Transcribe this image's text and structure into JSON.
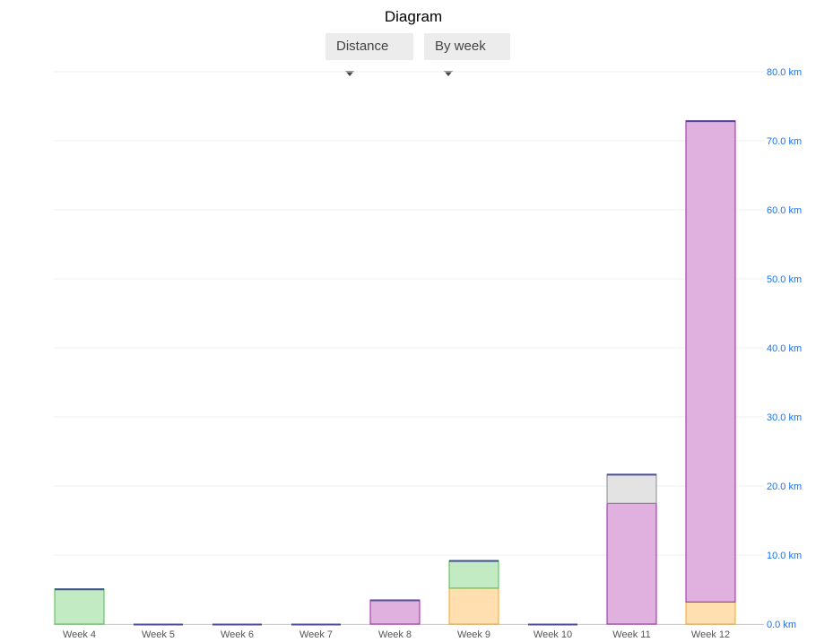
{
  "header": {
    "title": "Diagram",
    "metric_select": "Distance",
    "period_select": "By week"
  },
  "chart_data": {
    "type": "bar",
    "stacked": true,
    "title": "Diagram",
    "categories": [
      "Week 4",
      "Week 5",
      "Week 6",
      "Week 7",
      "Week 8",
      "Week 9",
      "Week 10",
      "Week 11",
      "Week 12"
    ],
    "ylim": [
      0,
      80
    ],
    "yticks": [
      "0.0 km",
      "10.0 km",
      "20.0 km",
      "30.0 km",
      "40.0 km",
      "50.0 km",
      "60.0 km",
      "70.0 km",
      "80.0 km"
    ],
    "ytick_values": [
      0,
      10,
      20,
      30,
      40,
      50,
      60,
      70,
      80
    ],
    "y_axis_position": "right",
    "grid": true,
    "legend": "none",
    "series": [
      {
        "color": "#ffdfb0",
        "stroke": "#f5a623",
        "values": [
          0,
          0,
          0,
          0,
          0,
          5.2,
          0,
          0,
          3.2
        ]
      },
      {
        "color": "#e0b0de",
        "stroke": "#a020b0",
        "values": [
          0,
          0,
          0,
          0,
          3.5,
          0,
          0,
          17.5,
          69.7
        ]
      },
      {
        "color": "#c2ebc4",
        "stroke": "#4cbb4c",
        "values": [
          5.1,
          0,
          0,
          0,
          0,
          4.0,
          0,
          0,
          0
        ]
      },
      {
        "color": "#e3e3e3",
        "stroke": "#888888",
        "values": [
          0,
          0,
          0,
          0,
          0,
          0,
          0,
          4.2,
          0
        ]
      }
    ],
    "colors": {
      "tick": "#1a73e8",
      "grid": "#efefef",
      "xlabel": "#555555",
      "baseline_marker": "#4b4f9b"
    }
  }
}
